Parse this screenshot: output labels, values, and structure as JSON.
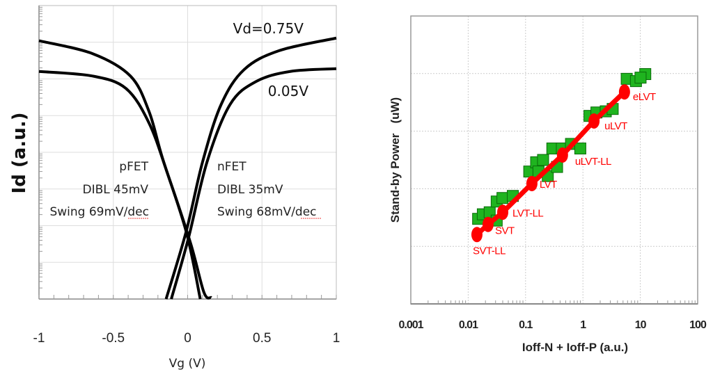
{
  "chart_data": [
    {
      "type": "line",
      "xlabel": "Vg (V)",
      "ylabel": "Id (a.u.)",
      "xlim": [
        -1,
        1
      ],
      "ylim": [
        1,
        100000000
      ],
      "yscale": "log",
      "xticks": [
        "-1",
        "-0.5",
        "0",
        "0.5",
        "1"
      ],
      "grid": true,
      "annotations": {
        "vd_high": "Vd=0.75V",
        "vd_low": "0.05V",
        "pfet": "pFET",
        "pfet_dibl": "DIBL 45mV",
        "pfet_swing": "Swing 69mV/dec",
        "nfet": "nFET",
        "nfet_dibl": "DIBL 35mV",
        "nfet_swing": "Swing 68mV/dec"
      },
      "line_color": "#000000",
      "series": [
        {
          "x": [
            -0.145,
            -0.01,
            0.1,
            0.225,
            0.38,
            0.615,
            1.0
          ],
          "y": [
            1,
            69,
            5400,
            200000,
            1800000,
            5900000,
            13000000
          ]
        },
        {
          "x": [
            -0.11,
            0.005,
            0.13,
            0.285,
            0.46,
            0.69,
            1.0
          ],
          "y": [
            1,
            45,
            5400,
            200000,
            850000,
            1600000,
            1900000
          ]
        },
        {
          "x": [
            -1.0,
            -0.64,
            -0.385,
            -0.26,
            -0.17,
            -0.01,
            0.085
          ],
          "y": [
            11000000,
            4900000,
            1200000,
            130000,
            7100,
            69,
            1
          ]
        },
        {
          "x": [
            -1.0,
            -0.64,
            -0.415,
            -0.26,
            -0.135,
            0.02,
            0.11,
            0.16
          ],
          "y": [
            1600000,
            1200000,
            550000,
            63000,
            2600,
            33,
            1.5,
            1.1
          ]
        }
      ]
    },
    {
      "type": "scatter",
      "xlabel": "Ioff-N +  Ioff-P (a.u.)",
      "ylabel": "Stand-by Power   (uW)",
      "xscale": "log",
      "yscale": "log",
      "xlim": [
        0.001,
        100
      ],
      "ylim": [
        1,
        100000
      ],
      "xticks": [
        "0.001",
        "0.01",
        "0.1",
        "1",
        "10",
        "100"
      ],
      "grid": true,
      "colors": {
        "measured": "#1fb41f",
        "measured_edge": "#0a6a0a",
        "trend": "#ff0000"
      },
      "series": [
        {
          "marker": "square",
          "x": [
            0.0149,
            0.018,
            0.0237,
            0.0314,
            0.0396,
            0.06,
            0.0314,
            0.116,
            0.153,
            0.202,
            0.168,
            0.244,
            0.354,
            0.293,
            0.43,
            0.62,
            0.9,
            1.3,
            1.72,
            2.5,
            3.3,
            5.8,
            8.4,
            12.2,
            10.1
          ],
          "y": [
            30,
            36,
            39,
            60,
            69,
            75,
            28,
            199,
            288,
            316,
            199,
            166,
            239,
            500,
            500,
            600,
            500,
            1840,
            2110,
            2210,
            2430,
            8100,
            7400,
            9800,
            8500
          ]
        },
        {
          "marker": "circle",
          "line": true,
          "labels": [
            "SVT-LL",
            "SVT",
            "LVT-LL",
            "LVT",
            "uLVT-LL",
            "uLVT",
            "eLVT"
          ],
          "x": [
            0.0142,
            0.0222,
            0.04,
            0.129,
            0.44,
            1.56,
            5.3
          ],
          "y": [
            16,
            24,
            39,
            123,
            384,
            1500,
            4800
          ]
        }
      ]
    }
  ]
}
